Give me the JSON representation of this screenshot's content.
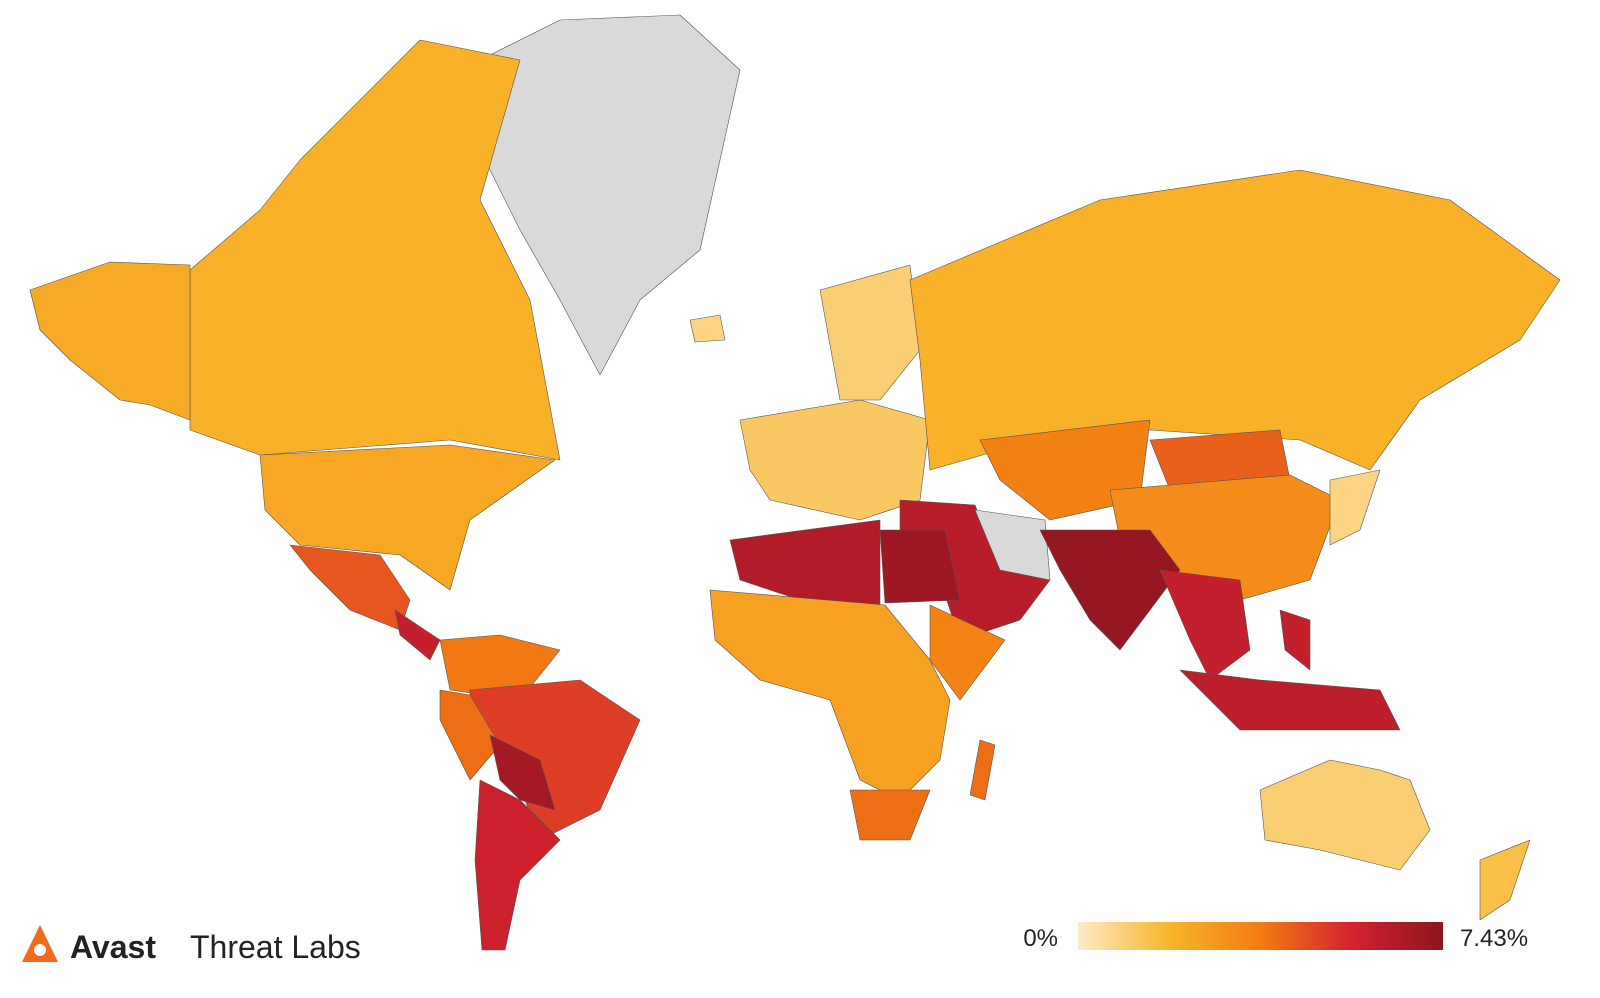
{
  "chart_data": {
    "type": "choropleth",
    "logo": {
      "name": "Avast",
      "text": "Threat Labs"
    },
    "values": [
      null,
      2.0,
      2.2,
      2.3,
      4.5,
      6.0,
      3.8,
      5.0,
      4.0,
      6.8,
      5.8,
      1.2,
      1.0,
      2.0,
      3.6,
      4.3,
      3.2,
      6.3,
      null,
      7.2,
      6.0,
      6.2,
      6.0,
      6.5,
      2.5,
      7.0,
      3.5,
      4.0,
      4.0,
      1.0,
      1.5,
      0.8,
      0.8
    ],
    "color_scale": [
      "#fdebc8",
      "#f8b52a",
      "#f27c12",
      "#d5222f",
      "#8c1520"
    ],
    "missing_color": "#d9d9d9",
    "legend": {
      "min": {
        "value": 0,
        "label": "0%"
      },
      "max": {
        "value": 7.43,
        "label": "7.43%"
      }
    }
  }
}
